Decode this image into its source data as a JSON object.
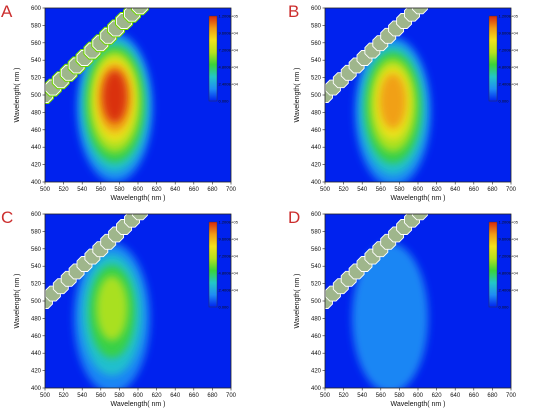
{
  "chart_data": [
    {
      "panel": "A",
      "type": "heatmap",
      "xlabel": "Wavelength( nm )",
      "ylabel": "Wavelength( nm )",
      "xlim": [
        500,
        700
      ],
      "ylim": [
        400,
        600
      ],
      "xticks": [
        500,
        520,
        540,
        560,
        580,
        600,
        620,
        640,
        660,
        680,
        700
      ],
      "yticks": [
        400,
        420,
        440,
        460,
        480,
        500,
        520,
        540,
        560,
        580,
        600
      ],
      "peak": {
        "x": 575,
        "y": 505,
        "intensity": 120000
      },
      "colorbar": {
        "min": 0,
        "max": 120000,
        "labels": [
          "1.200E+05",
          "9.600E+04",
          "7.200E+04",
          "4.800E+04",
          "2.400E+04",
          "0.000"
        ]
      },
      "scatter_band": "diagonal line x = y from 500 to 600 nm, masked with hatched octagons"
    },
    {
      "panel": "B",
      "type": "heatmap",
      "xlabel": "Wavelength( nm )",
      "ylabel": "Wavelength( nm )",
      "xlim": [
        500,
        700
      ],
      "ylim": [
        400,
        600
      ],
      "xticks": [
        500,
        520,
        540,
        560,
        580,
        600,
        620,
        640,
        660,
        680,
        700
      ],
      "yticks": [
        400,
        420,
        440,
        460,
        480,
        500,
        520,
        540,
        560,
        580,
        600
      ],
      "peak": {
        "x": 573,
        "y": 500,
        "intensity": 100000
      },
      "colorbar": {
        "min": 0,
        "max": 120000,
        "labels": [
          "1.200E+05",
          "9.600E+04",
          "7.200E+04",
          "4.800E+04",
          "2.400E+04",
          "0.000"
        ]
      }
    },
    {
      "panel": "C",
      "type": "heatmap",
      "xlabel": "Wavelength( nm )",
      "ylabel": "Wavelength( nm )",
      "xlim": [
        500,
        700
      ],
      "ylim": [
        400,
        600
      ],
      "xticks": [
        500,
        520,
        540,
        560,
        580,
        600,
        620,
        640,
        660,
        680,
        700
      ],
      "yticks": [
        400,
        420,
        440,
        460,
        480,
        500,
        520,
        540,
        560,
        580,
        600
      ],
      "peak": {
        "x": 572,
        "y": 500,
        "intensity": 72000
      },
      "colorbar": {
        "min": 0,
        "max": 120000,
        "labels": [
          "1.200E+05",
          "9.600E+04",
          "7.200E+04",
          "4.800E+04",
          "2.400E+04",
          "0.000"
        ]
      }
    },
    {
      "panel": "D",
      "type": "heatmap",
      "xlabel": "Wavelength( nm )",
      "ylabel": "Wavelength( nm )",
      "xlim": [
        500,
        700
      ],
      "ylim": [
        400,
        600
      ],
      "xticks": [
        500,
        520,
        540,
        560,
        580,
        600,
        620,
        640,
        660,
        680,
        700
      ],
      "yticks": [
        400,
        420,
        440,
        460,
        480,
        500,
        520,
        540,
        560,
        580,
        600
      ],
      "peak": {
        "x": 570,
        "y": 500,
        "intensity": 12000
      },
      "colorbar": {
        "min": 0,
        "max": 120000,
        "labels": [
          "1.200E+05",
          "9.600E+04",
          "7.200E+04",
          "4.800E+04",
          "2.400E+04",
          "0.000"
        ]
      }
    }
  ],
  "colors": {
    "scale": [
      "#0022ee",
      "#1f8cf5",
      "#22c6c9",
      "#3ad33a",
      "#b6e21d",
      "#f2e21a",
      "#f29a14",
      "#d8280e"
    ],
    "octagon_fill": "#9fb68c",
    "octagon_stroke": "#ffffff",
    "octagon_outline": "#6fd400",
    "panel_letter": "#cc2e2e"
  }
}
